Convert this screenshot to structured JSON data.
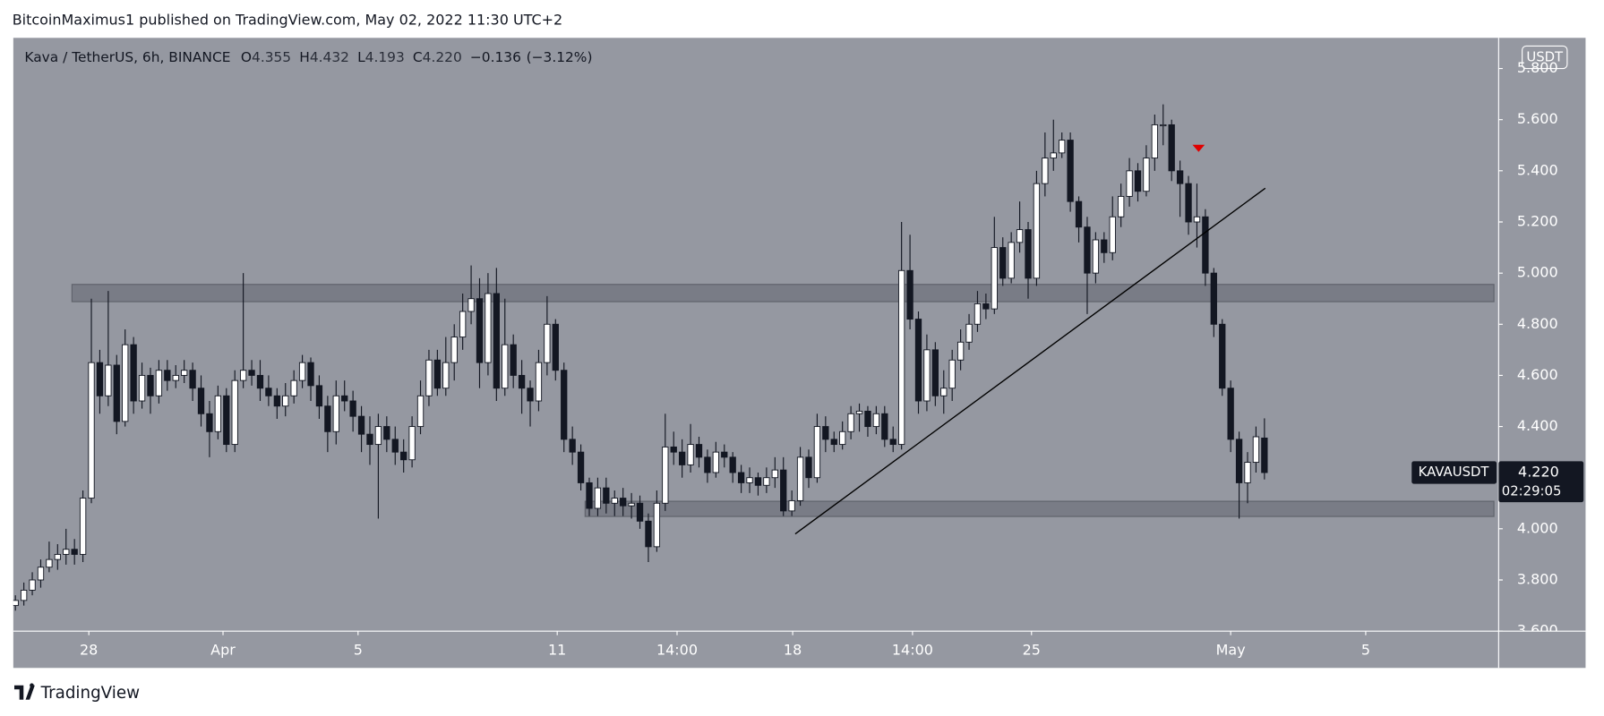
{
  "chart_data": {
    "type": "candlestick",
    "header": "BitcoinMaximus1 published on TradingView.com, May 02, 2022 11:30 UTC+2",
    "symbol": "Kava / TetherUS, 6h, BINANCE",
    "ohlc_header": [
      {
        "key": "O",
        "value": 4.355,
        "label": "4.355"
      },
      {
        "key": "H",
        "value": 4.432,
        "label": "4.432"
      },
      {
        "key": "L",
        "value": 4.193,
        "label": "4.193"
      },
      {
        "key": "C",
        "value": 4.22,
        "label": "4.220"
      }
    ],
    "change": {
      "value": -0.136,
      "label": "−0.136"
    },
    "change_pct": {
      "value": -3.12,
      "label": "(−3.12%)"
    },
    "currency": "USDT",
    "up_color": "#ffffff",
    "down_color": "#131722",
    "background": "#9598a1",
    "ohlc": [
      [
        3.7,
        3.74,
        3.68,
        3.72
      ],
      [
        3.72,
        3.79,
        3.7,
        3.76
      ],
      [
        3.76,
        3.83,
        3.74,
        3.8
      ],
      [
        3.8,
        3.88,
        3.77,
        3.85
      ],
      [
        3.85,
        3.95,
        3.83,
        3.88
      ],
      [
        3.88,
        3.94,
        3.84,
        3.9
      ],
      [
        3.9,
        4.0,
        3.86,
        3.92
      ],
      [
        3.92,
        3.96,
        3.86,
        3.9
      ],
      [
        3.9,
        4.15,
        3.87,
        4.12
      ],
      [
        4.12,
        4.9,
        4.1,
        4.65
      ],
      [
        4.65,
        4.7,
        4.45,
        4.52
      ],
      [
        4.52,
        4.93,
        4.48,
        4.64
      ],
      [
        4.64,
        4.68,
        4.37,
        4.42
      ],
      [
        4.42,
        4.78,
        4.4,
        4.72
      ],
      [
        4.72,
        4.75,
        4.45,
        4.5
      ],
      [
        4.5,
        4.65,
        4.47,
        4.6
      ],
      [
        4.6,
        4.63,
        4.45,
        4.52
      ],
      [
        4.52,
        4.66,
        4.49,
        4.62
      ],
      [
        4.62,
        4.66,
        4.54,
        4.58
      ],
      [
        4.58,
        4.64,
        4.55,
        4.6
      ],
      [
        4.6,
        4.66,
        4.57,
        4.62
      ],
      [
        4.62,
        4.65,
        4.5,
        4.55
      ],
      [
        4.55,
        4.6,
        4.4,
        4.45
      ],
      [
        4.45,
        4.5,
        4.28,
        4.38
      ],
      [
        4.38,
        4.56,
        4.35,
        4.52
      ],
      [
        4.52,
        4.55,
        4.3,
        4.33
      ],
      [
        4.33,
        4.62,
        4.3,
        4.58
      ],
      [
        4.58,
        5.0,
        4.55,
        4.62
      ],
      [
        4.62,
        4.66,
        4.56,
        4.6
      ],
      [
        4.6,
        4.66,
        4.5,
        4.55
      ],
      [
        4.55,
        4.6,
        4.48,
        4.52
      ],
      [
        4.52,
        4.55,
        4.43,
        4.48
      ],
      [
        4.48,
        4.57,
        4.44,
        4.52
      ],
      [
        4.52,
        4.62,
        4.49,
        4.58
      ],
      [
        4.58,
        4.68,
        4.55,
        4.65
      ],
      [
        4.65,
        4.67,
        4.5,
        4.56
      ],
      [
        4.56,
        4.6,
        4.43,
        4.48
      ],
      [
        4.48,
        4.52,
        4.3,
        4.38
      ],
      [
        4.38,
        4.58,
        4.33,
        4.52
      ],
      [
        4.52,
        4.58,
        4.46,
        4.5
      ],
      [
        4.5,
        4.54,
        4.38,
        4.44
      ],
      [
        4.44,
        4.48,
        4.3,
        4.37
      ],
      [
        4.37,
        4.44,
        4.25,
        4.33
      ],
      [
        4.33,
        4.45,
        4.04,
        4.4
      ],
      [
        4.4,
        4.44,
        4.3,
        4.35
      ],
      [
        4.35,
        4.4,
        4.25,
        4.3
      ],
      [
        4.3,
        4.35,
        4.22,
        4.27
      ],
      [
        4.27,
        4.44,
        4.24,
        4.4
      ],
      [
        4.4,
        4.58,
        4.37,
        4.52
      ],
      [
        4.52,
        4.7,
        4.48,
        4.66
      ],
      [
        4.66,
        4.7,
        4.52,
        4.55
      ],
      [
        4.55,
        4.75,
        4.52,
        4.65
      ],
      [
        4.65,
        4.8,
        4.58,
        4.75
      ],
      [
        4.75,
        4.92,
        4.7,
        4.85
      ],
      [
        4.85,
        5.03,
        4.8,
        4.9
      ],
      [
        4.9,
        4.98,
        4.55,
        4.65
      ],
      [
        4.65,
        5.0,
        4.6,
        4.92
      ],
      [
        4.92,
        5.02,
        4.5,
        4.55
      ],
      [
        4.55,
        4.9,
        4.52,
        4.72
      ],
      [
        4.72,
        4.76,
        4.55,
        4.6
      ],
      [
        4.6,
        4.66,
        4.45,
        4.55
      ],
      [
        4.55,
        4.58,
        4.4,
        4.5
      ],
      [
        4.5,
        4.7,
        4.46,
        4.65
      ],
      [
        4.65,
        4.91,
        4.6,
        4.8
      ],
      [
        4.8,
        4.82,
        4.58,
        4.62
      ],
      [
        4.62,
        4.65,
        4.3,
        4.35
      ],
      [
        4.35,
        4.4,
        4.25,
        4.3
      ],
      [
        4.3,
        4.33,
        4.15,
        4.18
      ],
      [
        4.18,
        4.2,
        4.05,
        4.08
      ],
      [
        4.08,
        4.2,
        4.05,
        4.16
      ],
      [
        4.16,
        4.2,
        4.06,
        4.1
      ],
      [
        4.1,
        4.15,
        4.05,
        4.12
      ],
      [
        4.12,
        4.16,
        4.05,
        4.09
      ],
      [
        4.09,
        4.14,
        4.04,
        4.1
      ],
      [
        4.1,
        4.13,
        4.0,
        4.03
      ],
      [
        4.03,
        4.06,
        3.87,
        3.93
      ],
      [
        3.93,
        4.15,
        3.91,
        4.1
      ],
      [
        4.1,
        4.45,
        4.07,
        4.32
      ],
      [
        4.32,
        4.38,
        4.25,
        4.3
      ],
      [
        4.3,
        4.35,
        4.2,
        4.25
      ],
      [
        4.25,
        4.41,
        4.22,
        4.33
      ],
      [
        4.33,
        4.36,
        4.24,
        4.28
      ],
      [
        4.28,
        4.31,
        4.18,
        4.22
      ],
      [
        4.22,
        4.34,
        4.2,
        4.3
      ],
      [
        4.3,
        4.33,
        4.24,
        4.28
      ],
      [
        4.28,
        4.3,
        4.18,
        4.22
      ],
      [
        4.22,
        4.25,
        4.14,
        4.18
      ],
      [
        4.18,
        4.24,
        4.14,
        4.2
      ],
      [
        4.2,
        4.22,
        4.13,
        4.17
      ],
      [
        4.17,
        4.24,
        4.14,
        4.2
      ],
      [
        4.2,
        4.28,
        4.16,
        4.23
      ],
      [
        4.23,
        4.28,
        4.05,
        4.07
      ],
      [
        4.07,
        4.15,
        4.05,
        4.11
      ],
      [
        4.11,
        4.32,
        4.09,
        4.28
      ],
      [
        4.28,
        4.31,
        4.16,
        4.2
      ],
      [
        4.2,
        4.45,
        4.18,
        4.4
      ],
      [
        4.4,
        4.44,
        4.3,
        4.35
      ],
      [
        4.35,
        4.38,
        4.3,
        4.33
      ],
      [
        4.33,
        4.42,
        4.31,
        4.38
      ],
      [
        4.38,
        4.48,
        4.35,
        4.45
      ],
      [
        4.45,
        4.49,
        4.38,
        4.46
      ],
      [
        4.46,
        4.48,
        4.36,
        4.4
      ],
      [
        4.4,
        4.48,
        4.37,
        4.45
      ],
      [
        4.45,
        4.48,
        4.32,
        4.35
      ],
      [
        4.35,
        4.4,
        4.3,
        4.33
      ],
      [
        4.33,
        5.2,
        4.31,
        5.01
      ],
      [
        5.01,
        5.15,
        4.78,
        4.82
      ],
      [
        4.82,
        4.85,
        4.45,
        4.5
      ],
      [
        4.5,
        4.76,
        4.46,
        4.7
      ],
      [
        4.7,
        4.73,
        4.48,
        4.52
      ],
      [
        4.52,
        4.62,
        4.45,
        4.55
      ],
      [
        4.55,
        4.7,
        4.5,
        4.66
      ],
      [
        4.66,
        4.78,
        4.62,
        4.73
      ],
      [
        4.73,
        4.84,
        4.7,
        4.8
      ],
      [
        4.8,
        4.93,
        4.77,
        4.88
      ],
      [
        4.88,
        4.92,
        4.82,
        4.86
      ],
      [
        4.86,
        5.22,
        4.84,
        5.1
      ],
      [
        5.1,
        5.14,
        4.95,
        4.98
      ],
      [
        4.98,
        5.16,
        4.96,
        5.12
      ],
      [
        5.12,
        5.28,
        5.08,
        5.17
      ],
      [
        5.17,
        5.2,
        4.9,
        4.98
      ],
      [
        4.98,
        5.4,
        4.95,
        5.35
      ],
      [
        5.35,
        5.55,
        5.3,
        5.45
      ],
      [
        5.45,
        5.6,
        5.4,
        5.47
      ],
      [
        5.47,
        5.55,
        5.45,
        5.52
      ],
      [
        5.52,
        5.55,
        5.24,
        5.28
      ],
      [
        5.28,
        5.3,
        5.12,
        5.18
      ],
      [
        5.18,
        5.22,
        4.84,
        5.0
      ],
      [
        5.0,
        5.16,
        4.96,
        5.13
      ],
      [
        5.13,
        5.16,
        5.04,
        5.08
      ],
      [
        5.08,
        5.3,
        5.05,
        5.22
      ],
      [
        5.22,
        5.35,
        5.18,
        5.3
      ],
      [
        5.3,
        5.45,
        5.26,
        5.4
      ],
      [
        5.4,
        5.43,
        5.28,
        5.32
      ],
      [
        5.32,
        5.5,
        5.3,
        5.45
      ],
      [
        5.45,
        5.62,
        5.4,
        5.58
      ],
      [
        5.58,
        5.66,
        5.5,
        5.58
      ],
      [
        5.58,
        5.6,
        5.36,
        5.4
      ],
      [
        5.4,
        5.44,
        5.22,
        5.35
      ],
      [
        5.35,
        5.38,
        5.15,
        5.2
      ],
      [
        5.2,
        5.35,
        5.1,
        5.22
      ],
      [
        5.22,
        5.25,
        4.95,
        5.0
      ],
      [
        5.0,
        5.02,
        4.75,
        4.8
      ],
      [
        4.8,
        4.82,
        4.52,
        4.55
      ],
      [
        4.55,
        4.58,
        4.3,
        4.35
      ],
      [
        4.35,
        4.38,
        4.04,
        4.18
      ],
      [
        4.18,
        4.3,
        4.1,
        4.26
      ],
      [
        4.26,
        4.4,
        4.22,
        4.36
      ],
      [
        4.355,
        4.432,
        4.193,
        4.22
      ]
    ],
    "xlim": [
      -0.25,
      175.75
    ],
    "xticks": [
      {
        "value": 8.7,
        "label": "28"
      },
      {
        "value": 24.6,
        "label": "Apr"
      },
      {
        "value": 40.6,
        "label": "5"
      },
      {
        "value": 64.2,
        "label": "11"
      },
      {
        "value": 78.4,
        "label": "14:00"
      },
      {
        "value": 92.1,
        "label": "18"
      },
      {
        "value": 106.3,
        "label": "14:00"
      },
      {
        "value": 120.4,
        "label": "25"
      },
      {
        "value": 144,
        "label": "May"
      },
      {
        "value": 160,
        "label": "5"
      }
    ],
    "ylim": [
      3.6,
      5.92
    ],
    "yticks": [
      {
        "value": 3.6,
        "label": "3.600"
      },
      {
        "value": 3.8,
        "label": "3.800"
      },
      {
        "value": 4.0,
        "label": "4.000"
      },
      {
        "value": 4.2,
        "label": "4.200"
      },
      {
        "value": 4.4,
        "label": "4.400"
      },
      {
        "value": 4.6,
        "label": "4.600"
      },
      {
        "value": 4.8,
        "label": "4.800"
      },
      {
        "value": 5.0,
        "label": "5.000"
      },
      {
        "value": 5.2,
        "label": "5.200"
      },
      {
        "value": 5.4,
        "label": "5.400"
      },
      {
        "value": 5.6,
        "label": "5.600"
      },
      {
        "value": 5.8,
        "label": "5.800"
      }
    ],
    "zones": [
      {
        "x": [
          6.7,
          175.2
        ],
        "y": [
          4.888,
          4.956
        ]
      },
      {
        "x": [
          67.5,
          175.2
        ],
        "y": [
          4.048,
          4.108
        ]
      }
    ],
    "trendline": {
      "x": [
        92.4,
        148.1
      ],
      "y": [
        3.98,
        5.332
      ]
    },
    "marker": {
      "x": 140.2,
      "y": 5.49,
      "color": "#e00000"
    },
    "last_price": {
      "symbol": "KAVAUSDT",
      "value": 4.22,
      "label": "4.220",
      "countdown": "02:29:05"
    },
    "footer": "TradingView"
  }
}
